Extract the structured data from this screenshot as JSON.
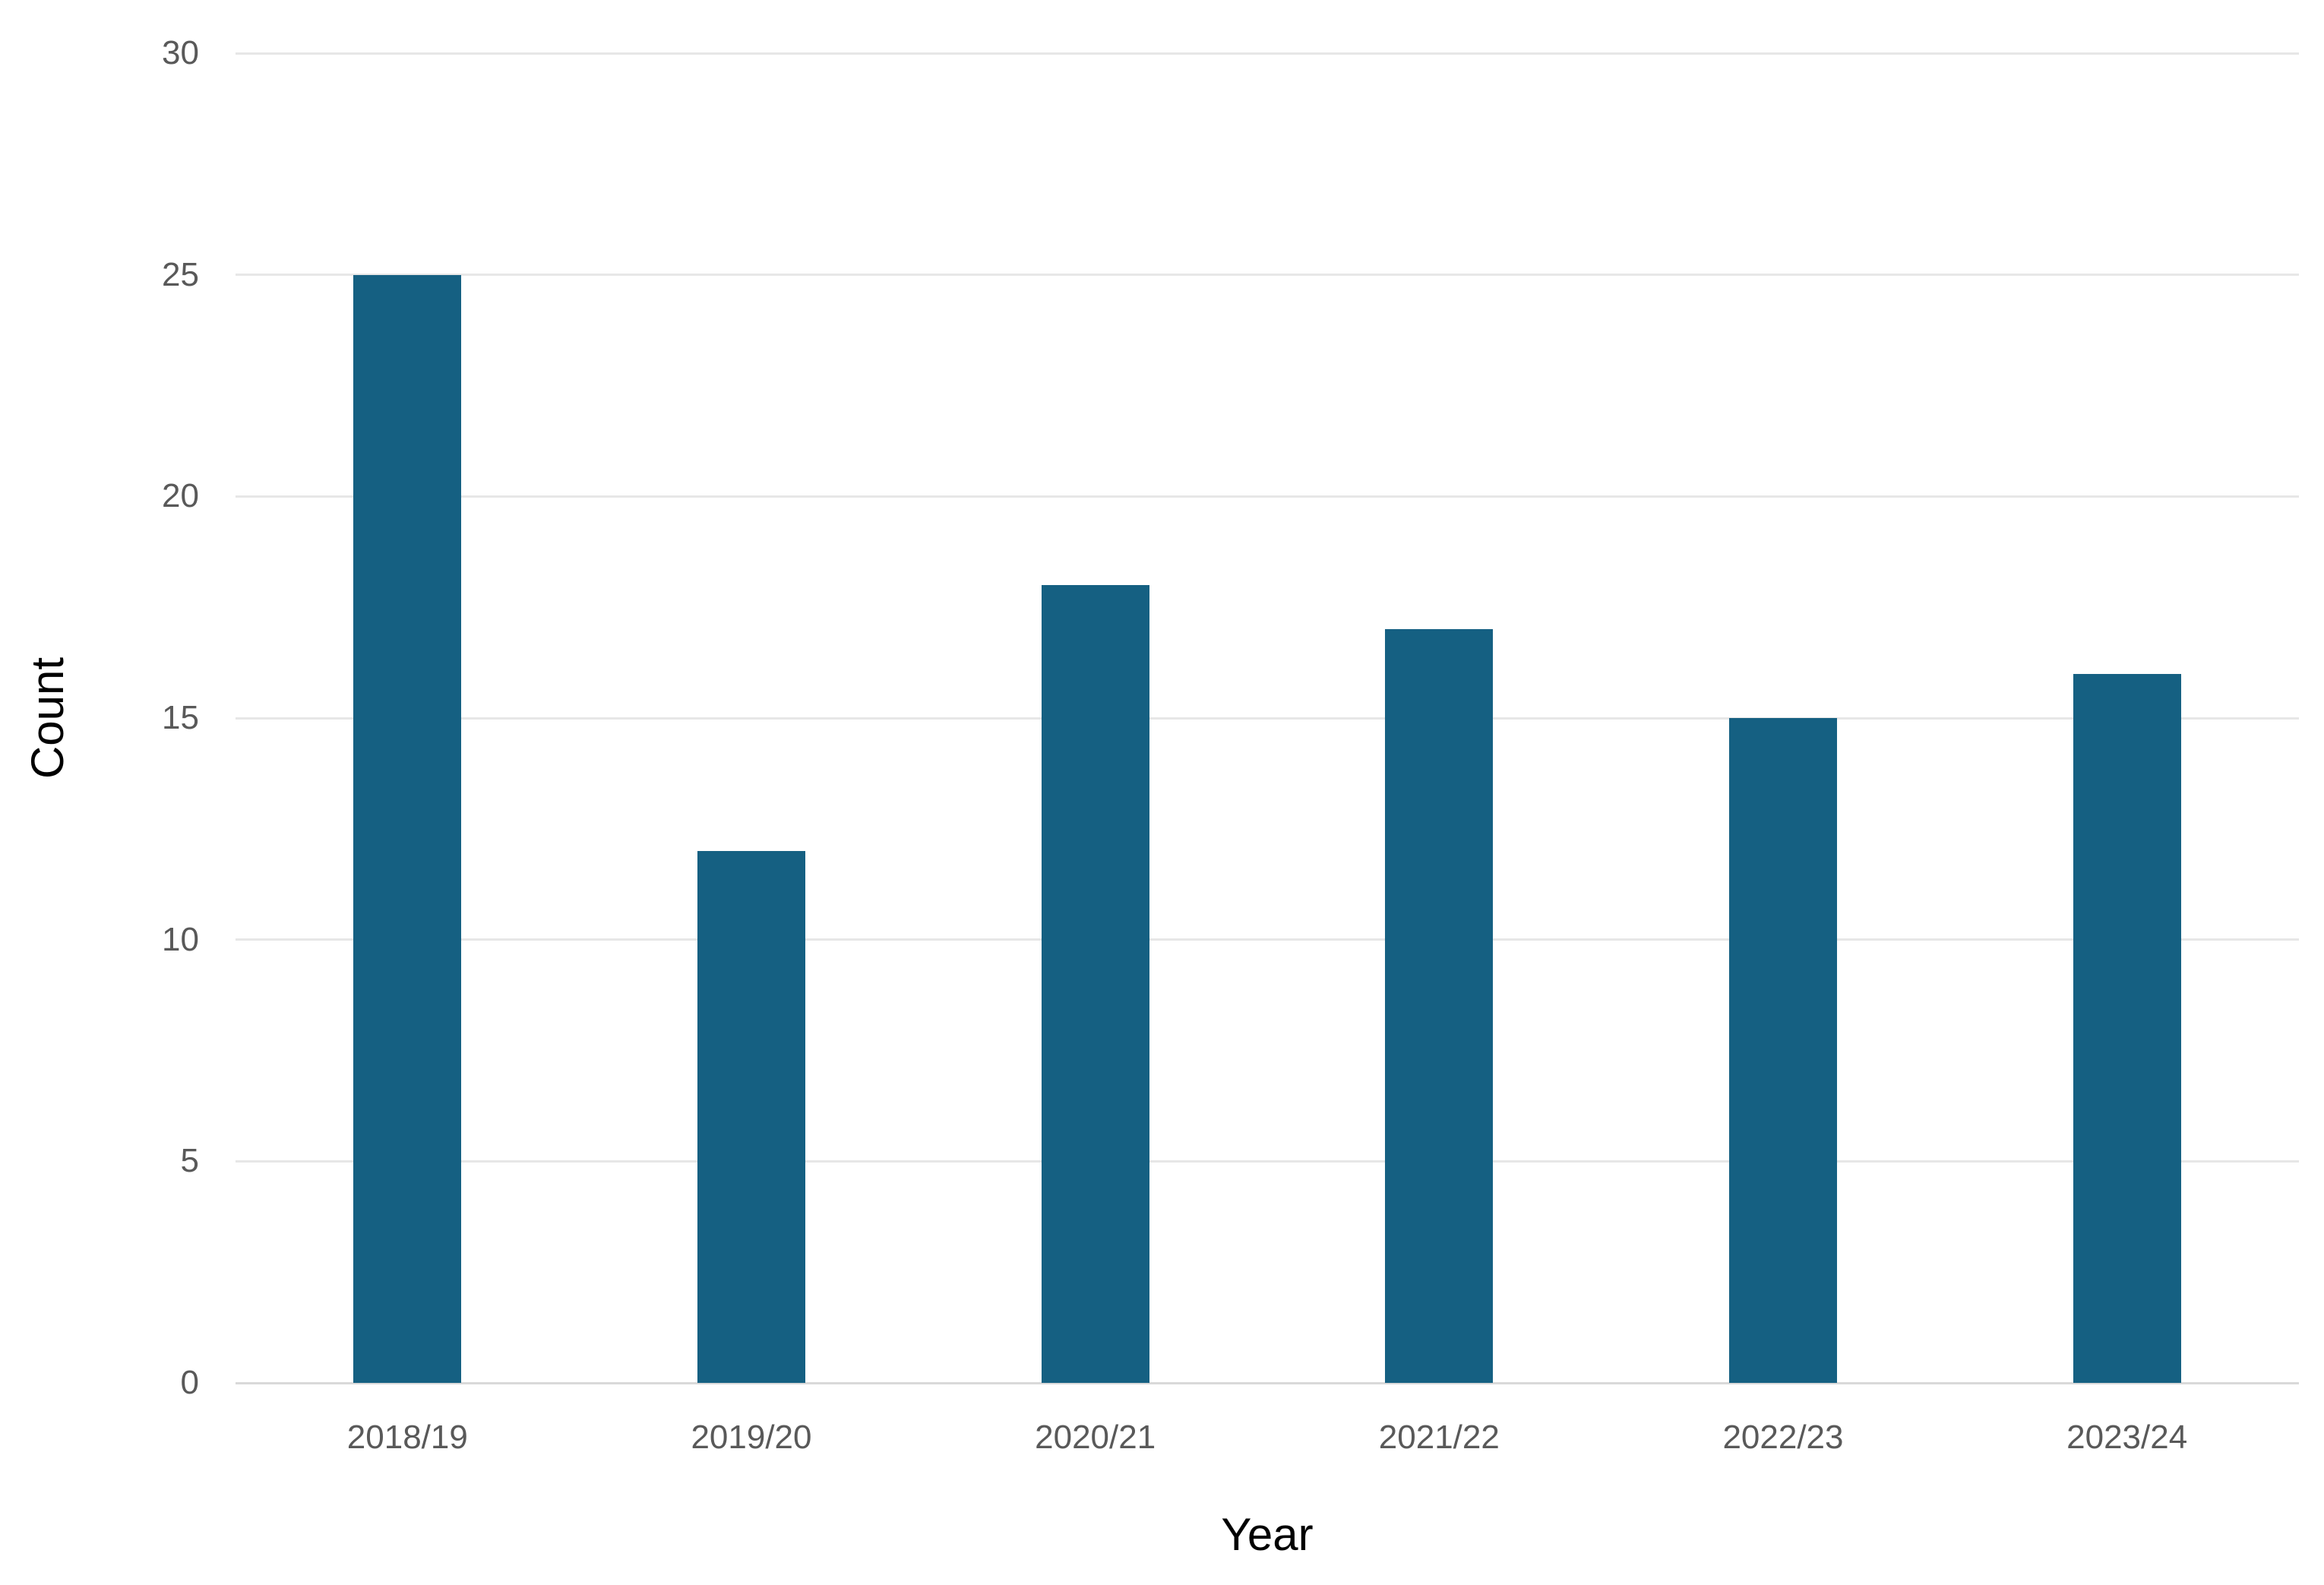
{
  "chart_data": {
    "type": "bar",
    "categories": [
      "2018/19",
      "2019/20",
      "2020/21",
      "2021/22",
      "2022/23",
      "2023/24"
    ],
    "values": [
      25,
      12,
      18,
      17,
      15,
      16
    ],
    "title": "",
    "xlabel": "Year",
    "ylabel": "Count",
    "ylim": [
      0,
      30
    ],
    "yticks": [
      0,
      5,
      10,
      15,
      20,
      25,
      30
    ],
    "grid": true,
    "legend_position": "none",
    "colors": {
      "bar": "#156082",
      "gridline": "#E7E7E7",
      "axis_line": "#D9D9D9",
      "tick_label": "#595959",
      "axis_title": "#000000",
      "background": "#FFFFFF"
    }
  }
}
